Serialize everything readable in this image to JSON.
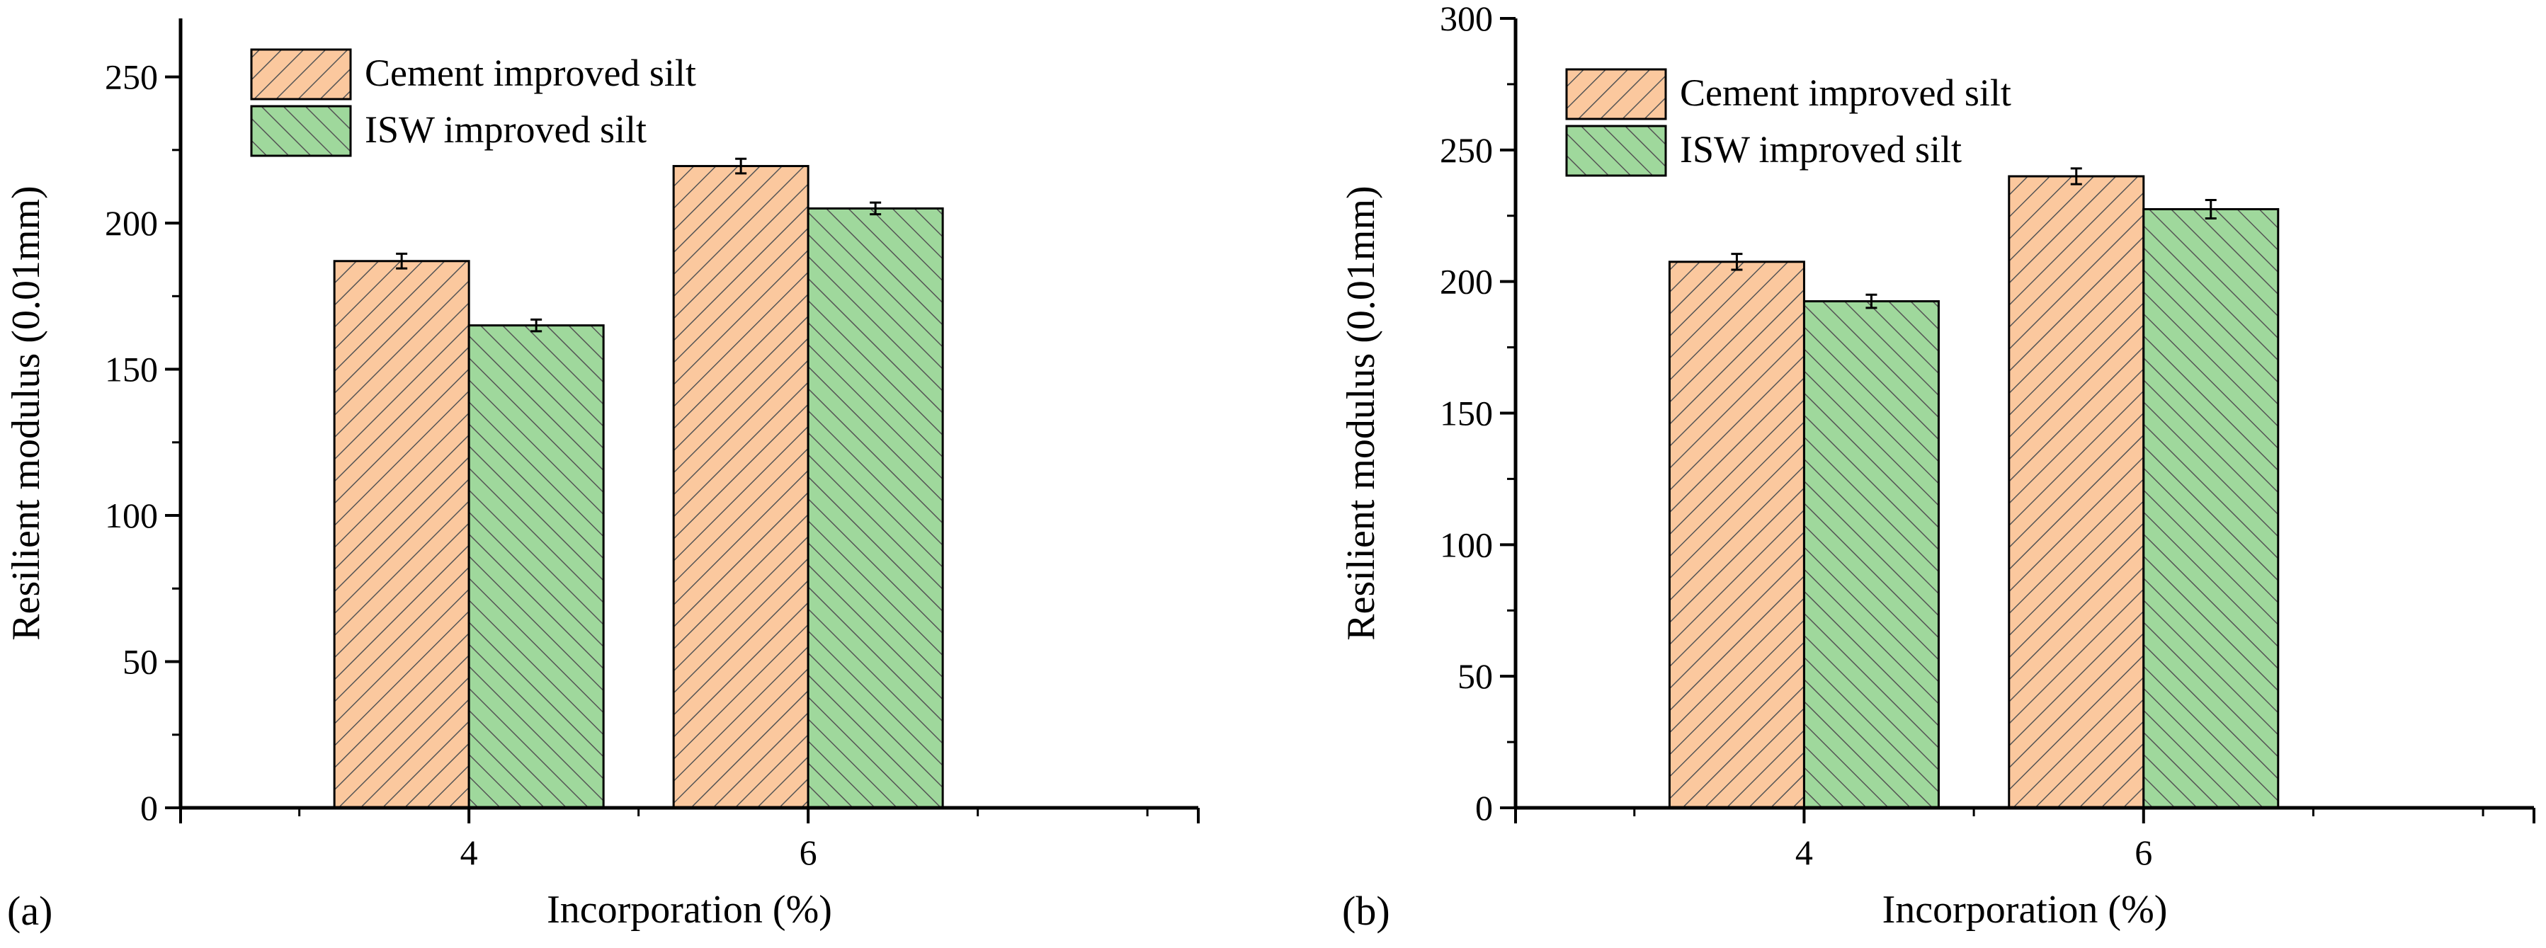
{
  "figure": {
    "colors": {
      "cement_fill": "#fbc89e",
      "isw_fill": "#9fd89c",
      "outline": "#000000",
      "hatch": "#555555"
    }
  },
  "chart_data": [
    {
      "type": "bar",
      "panel_label": "(a)",
      "categories": [
        "4",
        "6"
      ],
      "series": [
        {
          "name": "Cement improved silt",
          "values": [
            187,
            219.5
          ],
          "errors": [
            2.5,
            2.5
          ]
        },
        {
          "name": "ISW improved silt",
          "values": [
            165,
            205
          ],
          "errors": [
            2,
            2
          ]
        }
      ],
      "xlabel": "Incorporation (%)",
      "ylabel": "Resilient modulus (0.01mm)",
      "ylim": [
        0,
        270
      ],
      "yticks": [
        0,
        50,
        100,
        150,
        200,
        250
      ],
      "yticks_minor": [
        25,
        75,
        125,
        175,
        225
      ],
      "xlim": [
        2.3,
        8.3
      ],
      "legend_position": "top-left"
    },
    {
      "type": "bar",
      "panel_label": "(b)",
      "categories": [
        "4",
        "6"
      ],
      "series": [
        {
          "name": "Cement improved silt",
          "values": [
            207.5,
            240
          ],
          "errors": [
            3,
            3
          ]
        },
        {
          "name": "ISW improved silt",
          "values": [
            192.5,
            227.5
          ],
          "errors": [
            2.5,
            3.5
          ]
        }
      ],
      "xlabel": "Incorporation (%)",
      "ylabel": "Resilient modulus (0.01mm)",
      "ylim": [
        0,
        300
      ],
      "yticks": [
        0,
        50,
        100,
        150,
        200,
        250,
        300
      ],
      "yticks_minor": [
        25,
        75,
        125,
        175,
        225,
        275
      ],
      "xlim": [
        2.3,
        8.3
      ],
      "legend_position": "top-left"
    }
  ]
}
